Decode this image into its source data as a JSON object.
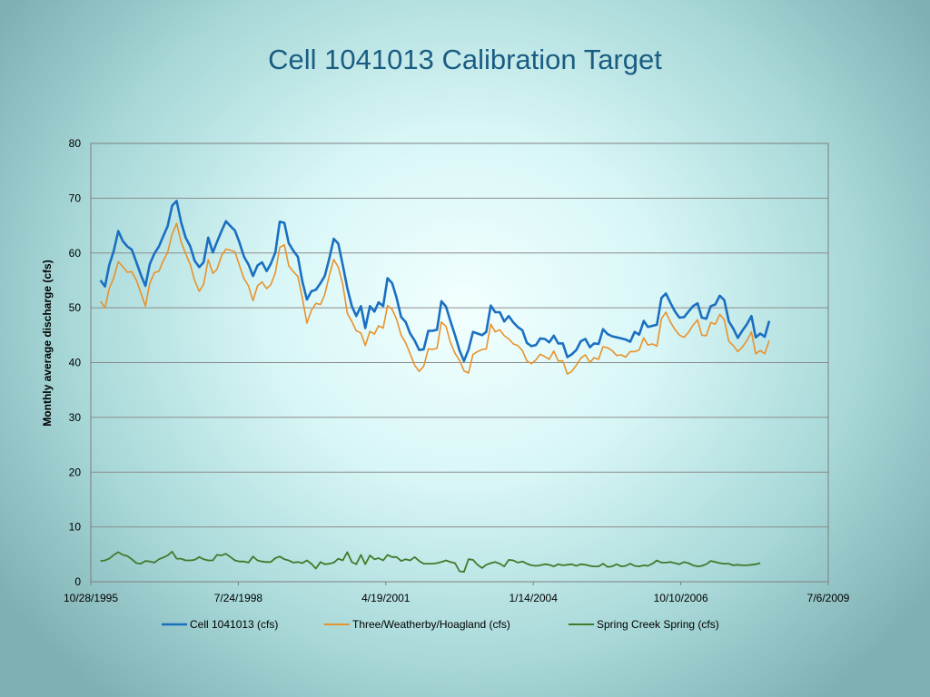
{
  "chart_data": {
    "type": "line",
    "title": "Cell 1041013 Calibration Target",
    "ylabel": "Monthly average discharge (cfs)",
    "xlabel": "",
    "ylim": [
      0,
      80
    ],
    "yticks": [
      0,
      10,
      20,
      30,
      40,
      50,
      60,
      70,
      80
    ],
    "xlim": [
      "1995-10-28",
      "2009-07-06"
    ],
    "xticks": [
      "10/28/1995",
      "7/24/1998",
      "4/19/2001",
      "1/14/2004",
      "10/10/2006",
      "7/6/2009"
    ],
    "x_start": "1996-01-01",
    "x_step": "1 month",
    "grid": {
      "horizontal": true,
      "vertical": false
    },
    "legend_position": "bottom",
    "series": [
      {
        "name": "Cell 1041013 (cfs)",
        "color": "#1a6fc1",
        "values": [
          55.0,
          53.9,
          57.8,
          60.4,
          64.0,
          62.2,
          61.2,
          60.6,
          58.3,
          56.0,
          54.0,
          58.0,
          59.9,
          61.2,
          63.0,
          64.9,
          68.6,
          69.5,
          65.6,
          62.8,
          61.2,
          58.6,
          57.4,
          58.3,
          62.8,
          60.1,
          62.0,
          64.0,
          65.8,
          64.9,
          64.1,
          61.9,
          59.3,
          57.9,
          55.8,
          57.7,
          58.3,
          56.7,
          58.0,
          60.1,
          65.7,
          65.5,
          61.8,
          60.4,
          59.3,
          54.8,
          51.5,
          53.0,
          53.3,
          54.5,
          55.8,
          59.0,
          62.6,
          61.7,
          57.8,
          53.6,
          50.3,
          48.5,
          50.3,
          46.3,
          50.3,
          49.3,
          51.0,
          50.3,
          55.4,
          54.5,
          51.8,
          48.3,
          47.4,
          45.3,
          44.0,
          42.3,
          42.4,
          45.8,
          45.8,
          46.0,
          51.2,
          50.2,
          47.6,
          45.0,
          42.2,
          40.3,
          42.4,
          45.6,
          45.3,
          45.0,
          45.6,
          50.4,
          49.2,
          49.2,
          47.5,
          48.5,
          47.3,
          46.5,
          45.9,
          43.6,
          43.0,
          43.2,
          44.4,
          44.3,
          43.7,
          44.9,
          43.5,
          43.5,
          41.0,
          41.5,
          42.3,
          43.9,
          44.3,
          42.8,
          43.5,
          43.4,
          46.1,
          45.2,
          44.8,
          44.6,
          44.4,
          44.2,
          43.8,
          45.6,
          45.1,
          47.6,
          46.5,
          46.7,
          46.9,
          51.8,
          52.6,
          50.9,
          49.3,
          48.2,
          48.3,
          49.3,
          50.3,
          50.8,
          48.2,
          48.0,
          50.3,
          50.6,
          52.2,
          51.4,
          47.5,
          46.2,
          44.5,
          45.8,
          47.0,
          48.5,
          44.6,
          45.3,
          44.7,
          47.6
        ]
      },
      {
        "name": "Three/Weatherby/Hoagland (cfs)",
        "color": "#e8922a",
        "values": [
          51.2,
          50.0,
          53.5,
          55.5,
          58.4,
          57.5,
          56.5,
          56.6,
          55.0,
          52.7,
          50.3,
          54.5,
          56.4,
          56.7,
          58.5,
          60.1,
          63.4,
          65.4,
          62.0,
          59.9,
          57.9,
          55.0,
          53.0,
          54.3,
          58.8,
          56.3,
          57.0,
          59.5,
          60.7,
          60.5,
          60.2,
          57.7,
          55.3,
          54.0,
          51.3,
          54.0,
          54.7,
          53.5,
          54.2,
          56.4,
          61.0,
          61.5,
          57.7,
          56.6,
          55.7,
          51.8,
          47.2,
          49.5,
          50.8,
          50.6,
          52.4,
          55.9,
          58.8,
          57.4,
          54.3,
          49.0,
          47.5,
          45.8,
          45.4,
          43.1,
          45.7,
          45.2,
          46.7,
          46.3,
          50.4,
          49.7,
          47.9,
          45.0,
          43.6,
          41.6,
          39.5,
          38.4,
          39.3,
          42.5,
          42.4,
          42.6,
          47.4,
          46.6,
          43.7,
          41.7,
          40.4,
          38.5,
          38.1,
          41.5,
          42.0,
          42.4,
          42.5,
          47.0,
          45.6,
          46.0,
          44.9,
          44.3,
          43.4,
          43.1,
          42.2,
          40.3,
          39.8,
          40.5,
          41.5,
          41.1,
          40.6,
          42.1,
          40.3,
          40.3,
          37.9,
          38.4,
          39.5,
          40.8,
          41.4,
          40.0,
          40.9,
          40.6,
          42.9,
          42.7,
          42.2,
          41.3,
          41.4,
          41.0,
          42.0,
          42.0,
          42.3,
          44.5,
          43.2,
          43.4,
          43.0,
          48.0,
          49.2,
          47.4,
          46.0,
          45.0,
          44.6,
          45.5,
          46.8,
          47.8,
          45.0,
          44.9,
          47.3,
          47.0,
          48.8,
          47.8,
          43.9,
          43.1,
          42.0,
          42.8,
          44.0,
          45.6,
          41.6,
          42.2,
          41.6,
          44.0
        ]
      },
      {
        "name": "Spring Creek Spring (cfs)",
        "color": "#3f7b2c",
        "values": [
          3.8,
          3.9,
          4.2,
          4.9,
          5.4,
          4.9,
          4.7,
          4.1,
          3.4,
          3.3,
          3.8,
          3.7,
          3.5,
          4.1,
          4.4,
          4.8,
          5.5,
          4.2,
          4.2,
          3.9,
          3.9,
          4.0,
          4.5,
          4.1,
          3.9,
          3.9,
          4.9,
          4.8,
          5.1,
          4.5,
          3.9,
          3.7,
          3.7,
          3.5,
          4.6,
          3.9,
          3.7,
          3.6,
          3.6,
          4.3,
          4.6,
          4.1,
          3.9,
          3.5,
          3.6,
          3.4,
          3.9,
          3.3,
          2.4,
          3.6,
          3.2,
          3.3,
          3.5,
          4.2,
          3.9,
          5.4,
          3.6,
          3.2,
          4.9,
          3.2,
          4.8,
          4.1,
          4.3,
          3.9,
          4.9,
          4.5,
          4.5,
          3.8,
          4.1,
          3.9,
          4.5,
          3.8,
          3.3,
          3.3,
          3.3,
          3.4,
          3.6,
          3.9,
          3.6,
          3.4,
          1.9,
          1.8,
          4.1,
          4.0,
          3.1,
          2.5,
          3.1,
          3.4,
          3.6,
          3.3,
          2.8,
          4.0,
          3.9,
          3.5,
          3.7,
          3.3,
          3.0,
          2.9,
          3.0,
          3.2,
          3.1,
          2.8,
          3.2,
          3.0,
          3.1,
          3.2,
          2.9,
          3.2,
          3.1,
          2.9,
          2.8,
          2.8,
          3.3,
          2.7,
          2.8,
          3.2,
          2.8,
          2.9,
          3.3,
          2.9,
          2.8,
          3.0,
          2.9,
          3.3,
          3.9,
          3.5,
          3.5,
          3.6,
          3.4,
          3.2,
          3.6,
          3.4,
          3.0,
          2.8,
          2.9,
          3.2,
          3.8,
          3.6,
          3.4,
          3.3,
          3.3,
          3.0,
          3.1,
          3.0,
          3.0,
          3.1,
          3.2,
          3.4
        ]
      }
    ]
  }
}
